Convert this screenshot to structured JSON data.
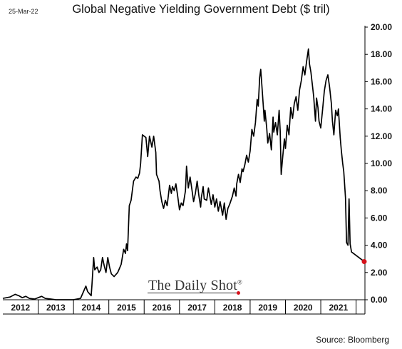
{
  "header": {
    "date": "25-Mar-22",
    "title": "Global Negative Yielding Government Debt ($ tril)"
  },
  "footer": {
    "source": "Source: Bloomberg"
  },
  "logo": {
    "text": "The Daily Shot",
    "registered_mark": "®"
  },
  "colors": {
    "line": "#000000",
    "last_point": "#d6121b",
    "logo_dot": "#d6121b",
    "axis": "#000000"
  },
  "chart_data": {
    "type": "line",
    "title": "Global Negative Yielding Government Debt ($ tril)",
    "xlabel": "",
    "ylabel": "",
    "x_tick_labels": [
      "2012",
      "2013",
      "2014",
      "2015",
      "2016",
      "2017",
      "2018",
      "2019",
      "2020",
      "2021"
    ],
    "y_tick_labels": [
      "0.00",
      "2.00",
      "4.00",
      "6.00",
      "8.00",
      "10.00",
      "12.00",
      "14.00",
      "16.00",
      "18.00",
      "20.00"
    ],
    "xlim": [
      2012.0,
      2022.25
    ],
    "ylim": [
      0,
      20
    ],
    "y_axis_side": "right",
    "grid": false,
    "legend": "none",
    "last_point_marker": {
      "x": 2022.23,
      "y": 2.8
    },
    "series": [
      {
        "points": [
          [
            2012.0,
            0.1
          ],
          [
            2012.2,
            0.2
          ],
          [
            2012.35,
            0.4
          ],
          [
            2012.45,
            0.3
          ],
          [
            2012.55,
            0.15
          ],
          [
            2012.65,
            0.25
          ],
          [
            2012.75,
            0.1
          ],
          [
            2012.9,
            0.05
          ],
          [
            2013.0,
            0.15
          ],
          [
            2013.1,
            0.25
          ],
          [
            2013.2,
            0.1
          ],
          [
            2013.35,
            0.05
          ],
          [
            2013.5,
            0.0
          ],
          [
            2013.8,
            0.0
          ],
          [
            2014.0,
            0.0
          ],
          [
            2014.2,
            0.1
          ],
          [
            2014.3,
            0.7
          ],
          [
            2014.35,
            1.0
          ],
          [
            2014.4,
            0.6
          ],
          [
            2014.5,
            0.3
          ],
          [
            2014.52,
            1.0
          ],
          [
            2014.57,
            3.1
          ],
          [
            2014.6,
            2.2
          ],
          [
            2014.67,
            2.4
          ],
          [
            2014.72,
            2.0
          ],
          [
            2014.77,
            2.2
          ],
          [
            2014.82,
            3.1
          ],
          [
            2014.87,
            2.5
          ],
          [
            2014.92,
            2.0
          ],
          [
            2014.97,
            3.1
          ],
          [
            2015.02,
            2.4
          ],
          [
            2015.07,
            1.9
          ],
          [
            2015.15,
            1.7
          ],
          [
            2015.25,
            2.0
          ],
          [
            2015.3,
            2.3
          ],
          [
            2015.35,
            2.6
          ],
          [
            2015.42,
            3.7
          ],
          [
            2015.47,
            3.4
          ],
          [
            2015.5,
            4.1
          ],
          [
            2015.53,
            3.6
          ],
          [
            2015.58,
            6.9
          ],
          [
            2015.63,
            7.3
          ],
          [
            2015.7,
            8.7
          ],
          [
            2015.77,
            9.0
          ],
          [
            2015.82,
            8.9
          ],
          [
            2015.87,
            9.3
          ],
          [
            2015.9,
            10.0
          ],
          [
            2015.95,
            12.1
          ],
          [
            2016.05,
            11.9
          ],
          [
            2016.1,
            10.5
          ],
          [
            2016.15,
            12.0
          ],
          [
            2016.22,
            11.2
          ],
          [
            2016.27,
            12.0
          ],
          [
            2016.33,
            10.8
          ],
          [
            2016.35,
            9.2
          ],
          [
            2016.42,
            8.7
          ],
          [
            2016.45,
            8.0
          ],
          [
            2016.5,
            7.2
          ],
          [
            2016.55,
            6.7
          ],
          [
            2016.6,
            7.3
          ],
          [
            2016.65,
            6.9
          ],
          [
            2016.72,
            8.4
          ],
          [
            2016.77,
            7.8
          ],
          [
            2016.8,
            8.3
          ],
          [
            2016.85,
            8.0
          ],
          [
            2016.9,
            8.5
          ],
          [
            2016.95,
            7.6
          ],
          [
            2017.0,
            6.6
          ],
          [
            2017.05,
            7.1
          ],
          [
            2017.1,
            6.9
          ],
          [
            2017.17,
            8.0
          ],
          [
            2017.2,
            9.8
          ],
          [
            2017.25,
            8.2
          ],
          [
            2017.3,
            9.0
          ],
          [
            2017.35,
            8.1
          ],
          [
            2017.4,
            7.2
          ],
          [
            2017.45,
            7.8
          ],
          [
            2017.5,
            8.7
          ],
          [
            2017.55,
            7.6
          ],
          [
            2017.6,
            6.8
          ],
          [
            2017.62,
            7.5
          ],
          [
            2017.67,
            8.3
          ],
          [
            2017.7,
            7.4
          ],
          [
            2017.77,
            7.3
          ],
          [
            2017.82,
            8.2
          ],
          [
            2017.9,
            7.0
          ],
          [
            2017.95,
            7.7
          ],
          [
            2018.0,
            6.8
          ],
          [
            2018.05,
            7.4
          ],
          [
            2018.1,
            6.5
          ],
          [
            2018.15,
            7.2
          ],
          [
            2018.22,
            6.2
          ],
          [
            2018.27,
            7.1
          ],
          [
            2018.32,
            5.9
          ],
          [
            2018.37,
            6.7
          ],
          [
            2018.42,
            7.0
          ],
          [
            2018.5,
            7.6
          ],
          [
            2018.55,
            8.2
          ],
          [
            2018.6,
            7.6
          ],
          [
            2018.62,
            8.5
          ],
          [
            2018.67,
            9.2
          ],
          [
            2018.72,
            8.6
          ],
          [
            2018.77,
            9.6
          ],
          [
            2018.8,
            9.4
          ],
          [
            2018.85,
            9.9
          ],
          [
            2018.9,
            10.6
          ],
          [
            2018.95,
            10.1
          ],
          [
            2019.0,
            10.9
          ],
          [
            2019.05,
            12.5
          ],
          [
            2019.1,
            12.0
          ],
          [
            2019.15,
            13.0
          ],
          [
            2019.2,
            14.7
          ],
          [
            2019.23,
            14.2
          ],
          [
            2019.27,
            16.3
          ],
          [
            2019.3,
            16.9
          ],
          [
            2019.33,
            15.8
          ],
          [
            2019.37,
            14.3
          ],
          [
            2019.4,
            13.1
          ],
          [
            2019.42,
            13.9
          ],
          [
            2019.47,
            12.6
          ],
          [
            2019.5,
            11.5
          ],
          [
            2019.55,
            12.2
          ],
          [
            2019.6,
            11.0
          ],
          [
            2019.65,
            13.4
          ],
          [
            2019.67,
            12.3
          ],
          [
            2019.72,
            13.0
          ],
          [
            2019.77,
            12.1
          ],
          [
            2019.82,
            13.9
          ],
          [
            2019.85,
            12.4
          ],
          [
            2019.88,
            9.2
          ],
          [
            2019.92,
            10.4
          ],
          [
            2019.97,
            11.8
          ],
          [
            2020.0,
            11.1
          ],
          [
            2020.05,
            12.8
          ],
          [
            2020.1,
            12.1
          ],
          [
            2020.15,
            14.1
          ],
          [
            2020.2,
            13.3
          ],
          [
            2020.25,
            14.4
          ],
          [
            2020.3,
            14.9
          ],
          [
            2020.35,
            13.9
          ],
          [
            2020.4,
            15.4
          ],
          [
            2020.45,
            16.1
          ],
          [
            2020.5,
            17.1
          ],
          [
            2020.55,
            16.5
          ],
          [
            2020.6,
            17.5
          ],
          [
            2020.65,
            18.4
          ],
          [
            2020.68,
            17.3
          ],
          [
            2020.72,
            16.7
          ],
          [
            2020.77,
            15.6
          ],
          [
            2020.8,
            14.9
          ],
          [
            2020.85,
            13.1
          ],
          [
            2020.88,
            14.8
          ],
          [
            2020.92,
            14.1
          ],
          [
            2020.95,
            13.1
          ],
          [
            2021.0,
            12.6
          ],
          [
            2021.05,
            13.9
          ],
          [
            2021.1,
            15.3
          ],
          [
            2021.15,
            16.1
          ],
          [
            2021.2,
            16.5
          ],
          [
            2021.25,
            15.6
          ],
          [
            2021.3,
            14.4
          ],
          [
            2021.33,
            13.1
          ],
          [
            2021.37,
            12.1
          ],
          [
            2021.42,
            13.9
          ],
          [
            2021.47,
            13.5
          ],
          [
            2021.5,
            14.0
          ],
          [
            2021.55,
            11.9
          ],
          [
            2021.58,
            11.0
          ],
          [
            2021.62,
            10.0
          ],
          [
            2021.65,
            9.4
          ],
          [
            2021.7,
            7.5
          ],
          [
            2021.73,
            4.2
          ],
          [
            2021.77,
            4.0
          ],
          [
            2021.8,
            7.4
          ],
          [
            2021.83,
            4.1
          ],
          [
            2021.87,
            3.5
          ],
          [
            2022.23,
            2.8
          ]
        ]
      }
    ]
  }
}
